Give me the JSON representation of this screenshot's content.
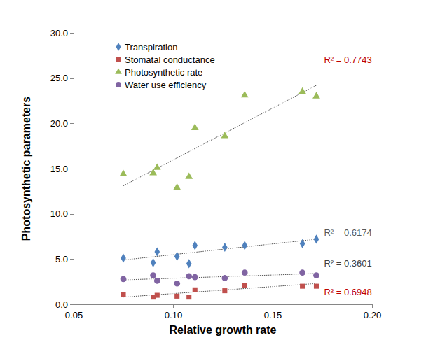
{
  "chart_data": {
    "type": "scatter",
    "x_label": "Relative growth rate",
    "y_label": "Photosynthetic parameters",
    "xlim": [
      0.05,
      0.2
    ],
    "xticks": [
      0.05,
      {
        "value": 0.1,
        "label": "0.10"
      },
      0.15,
      {
        "value": 0.2,
        "label": "0.20"
      }
    ],
    "ylim": [
      0,
      30
    ],
    "yticks": [
      {
        "value": 0,
        "label": "0.0"
      },
      {
        "value": 5,
        "label": "5.0"
      },
      {
        "value": 10,
        "label": "10.0"
      },
      {
        "value": 15,
        "label": "15.0"
      },
      {
        "value": 20,
        "label": "20.0"
      },
      {
        "value": 25,
        "label": "25.0"
      },
      {
        "value": 30,
        "label": "30.0"
      }
    ],
    "grid": false,
    "legend": "top-left",
    "x": [
      0.075,
      0.09,
      0.092,
      0.102,
      0.108,
      0.111,
      0.126,
      0.136,
      0.165,
      0.172
    ],
    "series": [
      {
        "name": "Transpiration",
        "color": "#4f81bd",
        "marker": "diamond",
        "values": [
          5.1,
          4.6,
          5.8,
          5.3,
          4.5,
          6.5,
          6.3,
          6.5,
          6.7,
          7.2
        ],
        "trend": {
          "x": [
            0.075,
            0.172
          ],
          "values": [
            4.9,
            7.2
          ]
        },
        "trend_label": {
          "text": "R² = 0.6174",
          "color": "#595959"
        }
      },
      {
        "name": "Stomatal conductance",
        "color": "#c0504d",
        "marker": "square",
        "values": [
          1.1,
          0.8,
          1.0,
          0.9,
          0.8,
          1.6,
          1.5,
          2.1,
          2.0,
          2.0
        ],
        "trend": {
          "x": [
            0.075,
            0.172
          ],
          "values": [
            0.8,
            2.3
          ]
        },
        "trend_label": {
          "text": "R² = 0.6948",
          "color": "#c00000"
        }
      },
      {
        "name": "Photosynthetic rate",
        "color": "#9bbb59",
        "marker": "triangle",
        "values": [
          14.4,
          14.5,
          15.1,
          12.9,
          14.1,
          19.5,
          18.6,
          23.1,
          23.5,
          23.0
        ],
        "trend": {
          "x": [
            0.075,
            0.172
          ],
          "values": [
            13.1,
            24.2
          ]
        },
        "trend_label": {
          "text": "R² = 0.7743",
          "color": "#c00000"
        }
      },
      {
        "name": "Water use efficiency",
        "color": "#8064a2",
        "marker": "circle",
        "values": [
          2.8,
          3.2,
          2.6,
          2.3,
          3.1,
          3.0,
          2.9,
          3.5,
          3.5,
          3.2
        ],
        "trend": {
          "x": [
            0.075,
            0.172
          ],
          "values": [
            2.7,
            3.4
          ]
        },
        "trend_label": {
          "text": "R² = 0.3601",
          "color": "#404040"
        }
      }
    ]
  }
}
